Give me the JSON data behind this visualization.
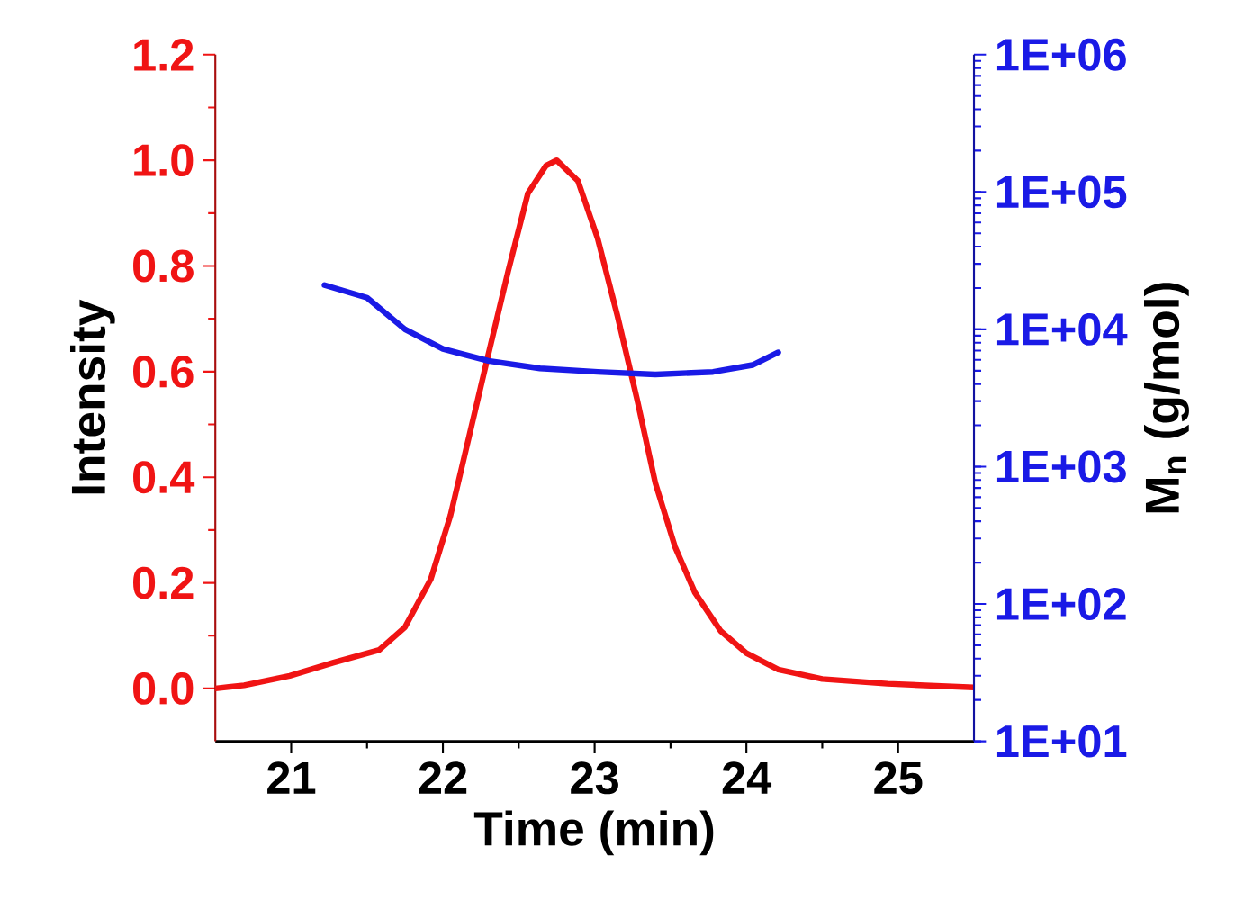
{
  "chart_data": {
    "type": "line",
    "xlabel": "Time (min)",
    "ylabel": "Intensity",
    "y2label": "M$_{n}$ (g/mol)",
    "xlim": [
      20.5,
      25.5
    ],
    "xticks": [
      21,
      22,
      23,
      24,
      25
    ],
    "ylim": [
      -0.1,
      1.2
    ],
    "yticks": [
      {
        "value": 0,
        "label": "0.0"
      },
      {
        "value": 0.2,
        "label": "0.2"
      },
      {
        "value": 0.4,
        "label": "0.4"
      },
      {
        "value": 0.6,
        "label": "0.6"
      },
      {
        "value": 0.8,
        "label": "0.8"
      },
      {
        "value": 1.0,
        "label": "1.0"
      },
      {
        "value": 1.2,
        "label": "1.2"
      }
    ],
    "y2lim": [
      10,
      1000000
    ],
    "y2ticks": [
      {
        "value": 10,
        "label": "1E+01"
      },
      {
        "value": 100,
        "label": "1E+02"
      },
      {
        "value": 1000,
        "label": "1E+03"
      },
      {
        "value": 10000,
        "label": "1E+04"
      },
      {
        "value": 100000,
        "label": "1E+05"
      },
      {
        "value": 1000000,
        "label": "1E+06"
      }
    ],
    "log": "y2",
    "marker": "none",
    "series": [
      {
        "color": "#f01414",
        "x": [
          20.5,
          20.69,
          20.99,
          21.28,
          21.58,
          21.75,
          21.92,
          22.05,
          22.17,
          22.3,
          22.43,
          22.56,
          22.68,
          22.75,
          22.89,
          23.02,
          23.15,
          23.28,
          23.4,
          23.53,
          23.66,
          23.83,
          24.0,
          24.21,
          24.5,
          24.93,
          25.5
        ],
        "values": [
          0,
          0.006,
          0.024,
          0.049,
          0.073,
          0.116,
          0.207,
          0.328,
          0.474,
          0.633,
          0.79,
          0.937,
          0.99,
          1.0,
          0.961,
          0.852,
          0.706,
          0.547,
          0.389,
          0.268,
          0.182,
          0.109,
          0.067,
          0.036,
          0.018,
          0.009,
          0.002
        ]
      },
      {
        "color": "#1a1ae6",
        "axis": "y2",
        "x": [
          21.22,
          21.5,
          21.75,
          22.0,
          22.3,
          22.64,
          23.02,
          23.4,
          23.78,
          24.04,
          24.21
        ],
        "values": [
          21000,
          17000,
          10000,
          7200,
          5900,
          5200,
          4900,
          4700,
          4900,
          5500,
          6800
        ]
      }
    ]
  }
}
